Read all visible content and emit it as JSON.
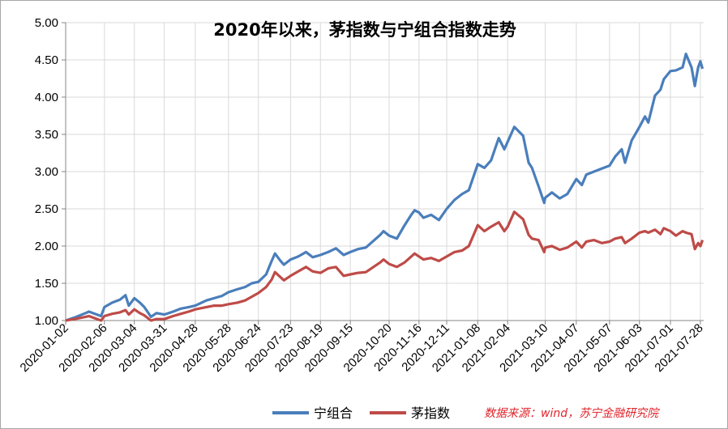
{
  "chart_data": {
    "type": "line",
    "title": "2020年以来，茅指数与宁组合指数走势",
    "source_note": "数据来源：wind，苏宁金融研究院",
    "ylim": [
      1.0,
      5.0
    ],
    "y_ticks": [
      "1.00",
      "1.50",
      "2.00",
      "2.50",
      "3.00",
      "3.50",
      "4.00",
      "4.50",
      "5.00"
    ],
    "x_ticks": [
      "2020-01-02",
      "2020-02-06",
      "2020-03-04",
      "2020-03-31",
      "2020-04-28",
      "2020-05-28",
      "2020-06-24",
      "2020-07-23",
      "2020-08-19",
      "2020-09-15",
      "2020-10-20",
      "2020-11-16",
      "2020-12-11",
      "2021-01-08",
      "2021-02-04",
      "2021-03-10",
      "2021-04-07",
      "2021-05-07",
      "2021-06-03",
      "2021-07-01",
      "2021-07-28"
    ],
    "grid": true,
    "legend_position": "bottom",
    "series": [
      {
        "name": "宁组合",
        "color": "#4a7ebb",
        "points": [
          [
            "2020-01-02",
            1.0
          ],
          [
            "2020-01-10",
            1.04
          ],
          [
            "2020-01-20",
            1.1
          ],
          [
            "2020-01-23",
            1.12
          ],
          [
            "2020-02-03",
            1.06
          ],
          [
            "2020-02-06",
            1.18
          ],
          [
            "2020-02-13",
            1.24
          ],
          [
            "2020-02-20",
            1.28
          ],
          [
            "2020-02-25",
            1.34
          ],
          [
            "2020-02-28",
            1.2
          ],
          [
            "2020-03-04",
            1.3
          ],
          [
            "2020-03-09",
            1.24
          ],
          [
            "2020-03-13",
            1.18
          ],
          [
            "2020-03-19",
            1.05
          ],
          [
            "2020-03-24",
            1.1
          ],
          [
            "2020-03-31",
            1.08
          ],
          [
            "2020-04-08",
            1.12
          ],
          [
            "2020-04-15",
            1.16
          ],
          [
            "2020-04-22",
            1.18
          ],
          [
            "2020-04-28",
            1.2
          ],
          [
            "2020-05-08",
            1.27
          ],
          [
            "2020-05-15",
            1.3
          ],
          [
            "2020-05-22",
            1.33
          ],
          [
            "2020-05-28",
            1.38
          ],
          [
            "2020-06-05",
            1.42
          ],
          [
            "2020-06-12",
            1.45
          ],
          [
            "2020-06-18",
            1.5
          ],
          [
            "2020-06-24",
            1.52
          ],
          [
            "2020-07-01",
            1.62
          ],
          [
            "2020-07-06",
            1.8
          ],
          [
            "2020-07-09",
            1.9
          ],
          [
            "2020-07-14",
            1.8
          ],
          [
            "2020-07-17",
            1.75
          ],
          [
            "2020-07-23",
            1.82
          ],
          [
            "2020-07-30",
            1.86
          ],
          [
            "2020-08-06",
            1.92
          ],
          [
            "2020-08-12",
            1.85
          ],
          [
            "2020-08-19",
            1.88
          ],
          [
            "2020-08-26",
            1.92
          ],
          [
            "2020-09-02",
            1.97
          ],
          [
            "2020-09-09",
            1.88
          ],
          [
            "2020-09-15",
            1.92
          ],
          [
            "2020-09-22",
            1.96
          ],
          [
            "2020-09-29",
            1.98
          ],
          [
            "2020-10-12",
            2.15
          ],
          [
            "2020-10-15",
            2.2
          ],
          [
            "2020-10-20",
            2.14
          ],
          [
            "2020-10-27",
            2.1
          ],
          [
            "2020-11-03",
            2.28
          ],
          [
            "2020-11-09",
            2.42
          ],
          [
            "2020-11-12",
            2.48
          ],
          [
            "2020-11-16",
            2.45
          ],
          [
            "2020-11-20",
            2.38
          ],
          [
            "2020-11-27",
            2.42
          ],
          [
            "2020-12-04",
            2.35
          ],
          [
            "2020-12-11",
            2.5
          ],
          [
            "2020-12-18",
            2.62
          ],
          [
            "2020-12-25",
            2.7
          ],
          [
            "2020-12-31",
            2.75
          ],
          [
            "2021-01-08",
            3.1
          ],
          [
            "2021-01-14",
            3.05
          ],
          [
            "2021-01-20",
            3.15
          ],
          [
            "2021-01-27",
            3.45
          ],
          [
            "2021-02-01",
            3.3
          ],
          [
            "2021-02-04",
            3.4
          ],
          [
            "2021-02-10",
            3.6
          ],
          [
            "2021-02-18",
            3.48
          ],
          [
            "2021-02-23",
            3.12
          ],
          [
            "2021-02-26",
            3.05
          ],
          [
            "2021-03-04",
            2.8
          ],
          [
            "2021-03-09",
            2.58
          ],
          [
            "2021-03-10",
            2.65
          ],
          [
            "2021-03-16",
            2.72
          ],
          [
            "2021-03-23",
            2.64
          ],
          [
            "2021-03-30",
            2.7
          ],
          [
            "2021-04-07",
            2.9
          ],
          [
            "2021-04-12",
            2.82
          ],
          [
            "2021-04-16",
            2.96
          ],
          [
            "2021-04-23",
            3.0
          ],
          [
            "2021-04-30",
            3.04
          ],
          [
            "2021-05-07",
            3.08
          ],
          [
            "2021-05-12",
            3.2
          ],
          [
            "2021-05-18",
            3.3
          ],
          [
            "2021-05-21",
            3.12
          ],
          [
            "2021-05-27",
            3.42
          ],
          [
            "2021-06-03",
            3.6
          ],
          [
            "2021-06-08",
            3.74
          ],
          [
            "2021-06-11",
            3.66
          ],
          [
            "2021-06-17",
            4.02
          ],
          [
            "2021-06-22",
            4.1
          ],
          [
            "2021-06-25",
            4.24
          ],
          [
            "2021-07-01",
            4.35
          ],
          [
            "2021-07-06",
            4.36
          ],
          [
            "2021-07-12",
            4.4
          ],
          [
            "2021-07-15",
            4.58
          ],
          [
            "2021-07-20",
            4.4
          ],
          [
            "2021-07-23",
            4.15
          ],
          [
            "2021-07-26",
            4.4
          ],
          [
            "2021-07-28",
            4.48
          ],
          [
            "2021-07-30",
            4.38
          ]
        ]
      },
      {
        "name": "茅指数",
        "color": "#be4b48",
        "points": [
          [
            "2020-01-02",
            1.0
          ],
          [
            "2020-01-10",
            1.02
          ],
          [
            "2020-01-20",
            1.05
          ],
          [
            "2020-01-23",
            1.06
          ],
          [
            "2020-02-03",
            1.0
          ],
          [
            "2020-02-06",
            1.06
          ],
          [
            "2020-02-13",
            1.09
          ],
          [
            "2020-02-20",
            1.11
          ],
          [
            "2020-02-25",
            1.14
          ],
          [
            "2020-02-28",
            1.08
          ],
          [
            "2020-03-04",
            1.15
          ],
          [
            "2020-03-09",
            1.1
          ],
          [
            "2020-03-13",
            1.07
          ],
          [
            "2020-03-19",
            0.98
          ],
          [
            "2020-03-24",
            1.02
          ],
          [
            "2020-03-31",
            1.02
          ],
          [
            "2020-04-08",
            1.06
          ],
          [
            "2020-04-15",
            1.09
          ],
          [
            "2020-04-22",
            1.12
          ],
          [
            "2020-04-28",
            1.15
          ],
          [
            "2020-05-08",
            1.18
          ],
          [
            "2020-05-15",
            1.2
          ],
          [
            "2020-05-22",
            1.2
          ],
          [
            "2020-05-28",
            1.22
          ],
          [
            "2020-06-05",
            1.24
          ],
          [
            "2020-06-12",
            1.27
          ],
          [
            "2020-06-18",
            1.32
          ],
          [
            "2020-06-24",
            1.37
          ],
          [
            "2020-07-01",
            1.45
          ],
          [
            "2020-07-06",
            1.55
          ],
          [
            "2020-07-09",
            1.65
          ],
          [
            "2020-07-14",
            1.58
          ],
          [
            "2020-07-17",
            1.54
          ],
          [
            "2020-07-23",
            1.6
          ],
          [
            "2020-07-30",
            1.66
          ],
          [
            "2020-08-06",
            1.72
          ],
          [
            "2020-08-12",
            1.66
          ],
          [
            "2020-08-19",
            1.64
          ],
          [
            "2020-08-26",
            1.7
          ],
          [
            "2020-09-02",
            1.72
          ],
          [
            "2020-09-09",
            1.6
          ],
          [
            "2020-09-15",
            1.62
          ],
          [
            "2020-09-22",
            1.64
          ],
          [
            "2020-09-29",
            1.65
          ],
          [
            "2020-10-12",
            1.78
          ],
          [
            "2020-10-15",
            1.82
          ],
          [
            "2020-10-20",
            1.76
          ],
          [
            "2020-10-27",
            1.72
          ],
          [
            "2020-11-03",
            1.78
          ],
          [
            "2020-11-09",
            1.86
          ],
          [
            "2020-11-12",
            1.9
          ],
          [
            "2020-11-16",
            1.86
          ],
          [
            "2020-11-20",
            1.82
          ],
          [
            "2020-11-27",
            1.84
          ],
          [
            "2020-12-04",
            1.8
          ],
          [
            "2020-12-11",
            1.86
          ],
          [
            "2020-12-18",
            1.92
          ],
          [
            "2020-12-25",
            1.94
          ],
          [
            "2020-12-31",
            2.0
          ],
          [
            "2021-01-08",
            2.28
          ],
          [
            "2021-01-14",
            2.2
          ],
          [
            "2021-01-20",
            2.26
          ],
          [
            "2021-01-27",
            2.32
          ],
          [
            "2021-02-01",
            2.2
          ],
          [
            "2021-02-04",
            2.26
          ],
          [
            "2021-02-10",
            2.46
          ],
          [
            "2021-02-18",
            2.36
          ],
          [
            "2021-02-23",
            2.15
          ],
          [
            "2021-02-26",
            2.1
          ],
          [
            "2021-03-04",
            2.08
          ],
          [
            "2021-03-09",
            1.92
          ],
          [
            "2021-03-10",
            1.98
          ],
          [
            "2021-03-16",
            2.0
          ],
          [
            "2021-03-23",
            1.95
          ],
          [
            "2021-03-30",
            1.98
          ],
          [
            "2021-04-07",
            2.06
          ],
          [
            "2021-04-12",
            1.98
          ],
          [
            "2021-04-16",
            2.06
          ],
          [
            "2021-04-23",
            2.08
          ],
          [
            "2021-04-30",
            2.04
          ],
          [
            "2021-05-07",
            2.06
          ],
          [
            "2021-05-12",
            2.1
          ],
          [
            "2021-05-18",
            2.12
          ],
          [
            "2021-05-21",
            2.04
          ],
          [
            "2021-05-27",
            2.1
          ],
          [
            "2021-06-03",
            2.18
          ],
          [
            "2021-06-08",
            2.2
          ],
          [
            "2021-06-11",
            2.18
          ],
          [
            "2021-06-17",
            2.22
          ],
          [
            "2021-06-22",
            2.16
          ],
          [
            "2021-06-25",
            2.24
          ],
          [
            "2021-07-01",
            2.2
          ],
          [
            "2021-07-06",
            2.14
          ],
          [
            "2021-07-12",
            2.2
          ],
          [
            "2021-07-15",
            2.18
          ],
          [
            "2021-07-20",
            2.16
          ],
          [
            "2021-07-23",
            1.96
          ],
          [
            "2021-07-26",
            2.04
          ],
          [
            "2021-07-28",
            2.0
          ],
          [
            "2021-07-30",
            2.08
          ]
        ]
      }
    ]
  }
}
